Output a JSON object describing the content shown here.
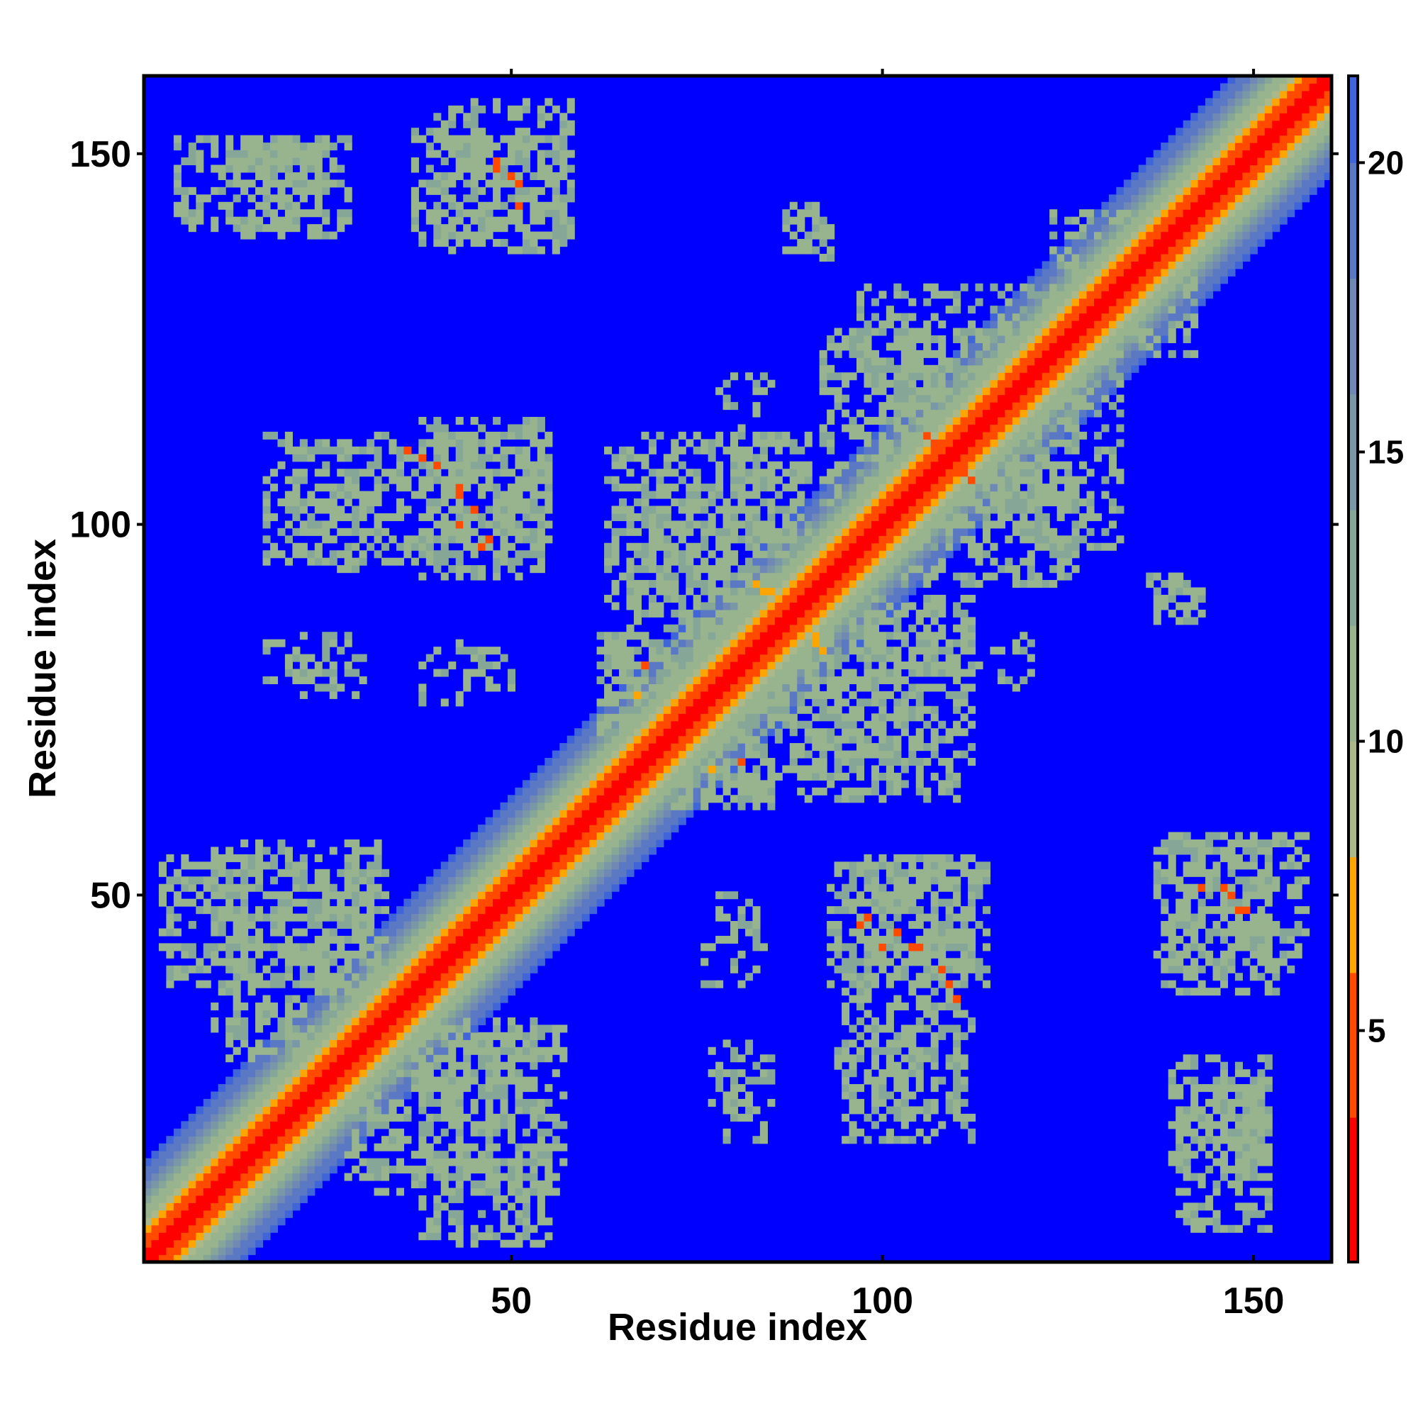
{
  "chart_data": {
    "type": "heatmap",
    "title": "",
    "xlabel": "Residue index",
    "ylabel": "Residue index",
    "n_residues": 160,
    "xlim": [
      0.5,
      160.5
    ],
    "ylim": [
      0.5,
      160.5
    ],
    "x_ticks": [
      50,
      100,
      150
    ],
    "y_ticks": [
      50,
      100,
      150
    ],
    "x_tick_labels": [
      "50",
      "100",
      "150"
    ],
    "y_tick_labels": [
      "50",
      "100",
      "150"
    ],
    "grid": false,
    "legend": "colorbar-right",
    "colorbar": {
      "range": [
        1,
        21.5
      ],
      "ticks": [
        5,
        10,
        15,
        20
      ],
      "tick_labels": [
        "5",
        "10",
        "15",
        "20"
      ],
      "bands": [
        {
          "from": 1,
          "to": 3.5,
          "color": "#ff0000"
        },
        {
          "from": 3.5,
          "to": 6,
          "color": "#ff4a00"
        },
        {
          "from": 6,
          "to": 8,
          "color": "#ffa500"
        },
        {
          "from": 8,
          "to": 10,
          "color": "#aab88a"
        },
        {
          "from": 10,
          "to": 12,
          "color": "#98b48e"
        },
        {
          "from": 12,
          "to": 14,
          "color": "#86a798"
        },
        {
          "from": 14,
          "to": 16,
          "color": "#7a97a8"
        },
        {
          "from": 16,
          "to": 18,
          "color": "#6f89b4"
        },
        {
          "from": 18,
          "to": 20,
          "color": "#5a78c4"
        },
        {
          "from": 20,
          "to": 21.5,
          "color": "#3f65d8"
        }
      ]
    },
    "background_value": 21.5,
    "background_color": "#0000ff",
    "contact_blocks": [
      {
        "x": [
          5,
          25
        ],
        "y": [
          140,
          152
        ],
        "value": 11,
        "density": 0.45
      },
      {
        "x": [
          37,
          58
        ],
        "y": [
          137,
          153
        ],
        "value": 11,
        "density": 0.45
      },
      {
        "x": [
          87,
          93
        ],
        "y": [
          136,
          142
        ],
        "value": 11,
        "density": 0.4
      },
      {
        "x": [
          17,
          55
        ],
        "y": [
          95,
          112
        ],
        "value": 11,
        "density": 0.45
      },
      {
        "x": [
          63,
          88
        ],
        "y": [
          76,
          110
        ],
        "value": 11,
        "density": 0.42
      },
      {
        "x": [
          92,
          132
        ],
        "y": [
          97,
          126
        ],
        "value": 11,
        "density": 0.42
      },
      {
        "x": [
          88,
          112
        ],
        "y": [
          66,
          90
        ],
        "value": 11,
        "density": 0.42
      },
      {
        "x": [
          65,
          85
        ],
        "y": [
          62,
          78
        ],
        "value": 11,
        "density": 0.4
      },
      {
        "x": [
          17,
          28
        ],
        "y": [
          79,
          84
        ],
        "value": 11,
        "density": 0.35
      },
      {
        "x": [
          38,
          47
        ],
        "y": [
          76,
          84
        ],
        "value": 11,
        "density": 0.25
      },
      {
        "x": [
          3,
          32
        ],
        "y": [
          38,
          55
        ],
        "value": 11,
        "density": 0.45
      },
      {
        "x": [
          28,
          57
        ],
        "y": [
          10,
          33
        ],
        "value": 11,
        "density": 0.42
      },
      {
        "x": [
          93,
          114
        ],
        "y": [
          38,
          55
        ],
        "value": 11,
        "density": 0.45
      },
      {
        "x": [
          94,
          105
        ],
        "y": [
          20,
          30
        ],
        "value": 11,
        "density": 0.4
      },
      {
        "x": [
          77,
          85
        ],
        "y": [
          20,
          30
        ],
        "value": 11,
        "density": 0.3
      },
      {
        "x": [
          78,
          84
        ],
        "y": [
          44,
          50
        ],
        "value": 11,
        "density": 0.25
      },
      {
        "x": [
          138,
          157
        ],
        "y": [
          40,
          58
        ],
        "value": 11,
        "density": 0.45
      },
      {
        "x": [
          139,
          152
        ],
        "y": [
          12,
          28
        ],
        "value": 11,
        "density": 0.45
      },
      {
        "x": [
          137,
          143
        ],
        "y": [
          88,
          93
        ],
        "value": 11,
        "density": 0.4
      },
      {
        "x": [
          111,
          120
        ],
        "y": [
          78,
          85
        ],
        "value": 11,
        "density": 0.3
      },
      {
        "x": [
          123,
          135
        ],
        "y": [
          128,
          142
        ],
        "value": 11,
        "density": 0.35
      }
    ],
    "close_contacts": [
      {
        "x": 48,
        "y": 149,
        "value": 5
      },
      {
        "x": 50,
        "y": 147,
        "value": 5
      },
      {
        "x": 40,
        "y": 108,
        "value": 5
      },
      {
        "x": 43,
        "y": 104,
        "value": 5
      },
      {
        "x": 45,
        "y": 102,
        "value": 5
      },
      {
        "x": 47,
        "y": 98,
        "value": 5
      },
      {
        "x": 68,
        "y": 81,
        "value": 5
      },
      {
        "x": 83,
        "y": 92,
        "value": 6
      },
      {
        "x": 85,
        "y": 91,
        "value": 6
      },
      {
        "x": 90,
        "y": 87,
        "value": 6
      },
      {
        "x": 91,
        "y": 84,
        "value": 6
      },
      {
        "x": 107,
        "y": 111,
        "value": 5
      },
      {
        "x": 112,
        "y": 106,
        "value": 5
      },
      {
        "x": 97,
        "y": 46,
        "value": 5
      },
      {
        "x": 100,
        "y": 43,
        "value": 5
      },
      {
        "x": 105,
        "y": 43,
        "value": 5
      },
      {
        "x": 108,
        "y": 40,
        "value": 5
      },
      {
        "x": 109,
        "y": 38,
        "value": 5
      },
      {
        "x": 110,
        "y": 36,
        "value": 5
      },
      {
        "x": 143,
        "y": 51,
        "value": 5
      },
      {
        "x": 146,
        "y": 51,
        "value": 5
      },
      {
        "x": 148,
        "y": 48,
        "value": 5
      },
      {
        "x": 77,
        "y": 67,
        "value": 6
      }
    ]
  }
}
